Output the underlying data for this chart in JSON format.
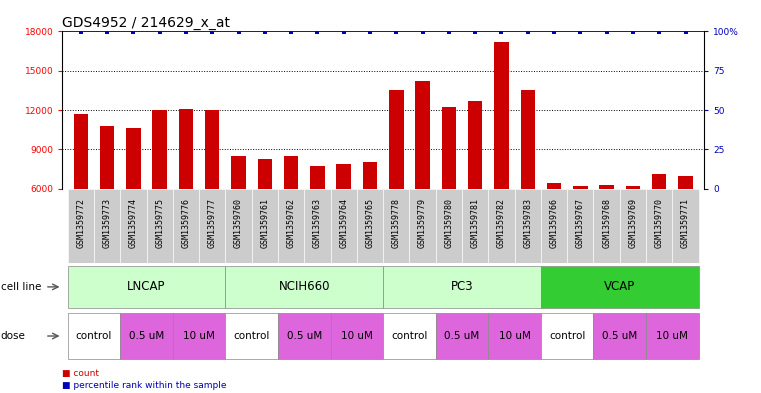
{
  "title": "GDS4952 / 214629_x_at",
  "samples": [
    "GSM1359772",
    "GSM1359773",
    "GSM1359774",
    "GSM1359775",
    "GSM1359776",
    "GSM1359777",
    "GSM1359760",
    "GSM1359761",
    "GSM1359762",
    "GSM1359763",
    "GSM1359764",
    "GSM1359765",
    "GSM1359778",
    "GSM1359779",
    "GSM1359780",
    "GSM1359781",
    "GSM1359782",
    "GSM1359783",
    "GSM1359766",
    "GSM1359767",
    "GSM1359768",
    "GSM1359769",
    "GSM1359770",
    "GSM1359771"
  ],
  "counts": [
    11700,
    10800,
    10600,
    12000,
    12100,
    12000,
    8500,
    8300,
    8500,
    7700,
    7900,
    8000,
    13500,
    14200,
    12200,
    12700,
    17200,
    13500,
    6400,
    6200,
    6300,
    6200,
    7100,
    7000
  ],
  "cell_line_groups": [
    {
      "name": "LNCAP",
      "start": 0,
      "end": 6,
      "color": "#ccffcc"
    },
    {
      "name": "NCIH660",
      "start": 6,
      "end": 12,
      "color": "#ccffcc"
    },
    {
      "name": "PC3",
      "start": 12,
      "end": 18,
      "color": "#ccffcc"
    },
    {
      "name": "VCAP",
      "start": 18,
      "end": 24,
      "color": "#33cc33"
    }
  ],
  "dose_pattern": [
    {
      "label": "control",
      "color": "#ffffff"
    },
    {
      "label": "0.5 uM",
      "color": "#dd66dd"
    },
    {
      "label": "10 uM",
      "color": "#dd66dd"
    }
  ],
  "cell_starts": [
    0,
    6,
    12,
    18
  ],
  "bar_color": "#cc0000",
  "percentile_color": "#0000bb",
  "sample_bg_color": "#cccccc",
  "ylim_left": [
    6000,
    18000
  ],
  "ylim_right": [
    0,
    100
  ],
  "yticks_left": [
    6000,
    9000,
    12000,
    15000,
    18000
  ],
  "yticks_right": [
    0,
    25,
    50,
    75,
    100
  ],
  "bg_color": "#ffffff",
  "title_fontsize": 10,
  "tick_fontsize": 6.5,
  "sample_fontsize": 6.0,
  "label_fontsize": 7.5,
  "cell_line_label_fontsize": 8.5,
  "dose_label_fontsize": 7.5
}
